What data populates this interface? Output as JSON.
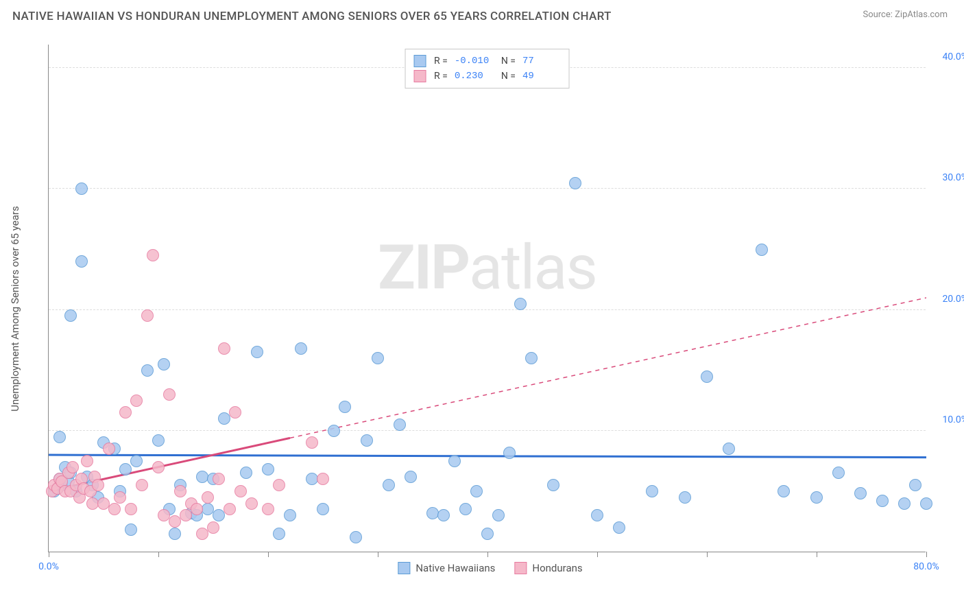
{
  "title": "NATIVE HAWAIIAN VS HONDURAN UNEMPLOYMENT AMONG SENIORS OVER 65 YEARS CORRELATION CHART",
  "source": "Source: ZipAtlas.com",
  "y_axis_label": "Unemployment Among Seniors over 65 years",
  "watermark_bold": "ZIP",
  "watermark_light": "atlas",
  "chart": {
    "type": "scatter",
    "background_color": "#ffffff",
    "grid_color": "#dddddd",
    "axis_color": "#888888",
    "tick_label_color": "#3b82f6",
    "xlim": [
      0,
      80
    ],
    "ylim": [
      0,
      42
    ],
    "x_ticks": [
      0,
      10,
      20,
      30,
      40,
      50,
      60,
      70,
      80
    ],
    "x_tick_labels": {
      "0": "0.0%",
      "80": "80.0%"
    },
    "y_ticks": [
      10,
      20,
      30,
      40
    ],
    "y_tick_labels": {
      "10": "10.0%",
      "20": "20.0%",
      "30": "30.0%",
      "40": "40.0%"
    },
    "marker_radius": 9,
    "marker_fill_opacity": 0.35,
    "legend_top": [
      {
        "swatch_fill": "#a8c9f0",
        "swatch_border": "#5b9bd5",
        "r_label": "R =",
        "r_value": "-0.010",
        "n_label": "N =",
        "n_value": "77"
      },
      {
        "swatch_fill": "#f5b8c9",
        "swatch_border": "#e77ba0",
        "r_label": "R =",
        "r_value": " 0.230",
        "n_label": "N =",
        "n_value": "49"
      }
    ],
    "legend_bottom": [
      {
        "swatch_fill": "#a8c9f0",
        "swatch_border": "#5b9bd5",
        "label": "Native Hawaiians"
      },
      {
        "swatch_fill": "#f5b8c9",
        "swatch_border": "#e77ba0",
        "label": "Hondurans"
      }
    ],
    "series": [
      {
        "name": "Native Hawaiians",
        "color_fill": "#a8c9f0",
        "color_border": "#5b9bd5",
        "trend": {
          "x1": 0,
          "y1": 8.0,
          "x2": 80,
          "y2": 7.8,
          "color": "#2f6fd1",
          "width": 3,
          "dash_from_x": null
        },
        "points": [
          [
            0.5,
            5.0
          ],
          [
            0.8,
            5.2
          ],
          [
            1.0,
            6.0
          ],
          [
            1.0,
            9.5
          ],
          [
            1.2,
            5.5
          ],
          [
            1.5,
            7.0
          ],
          [
            1.8,
            5.8
          ],
          [
            2.0,
            6.5
          ],
          [
            2.0,
            19.5
          ],
          [
            2.5,
            5.0
          ],
          [
            3.0,
            24.0
          ],
          [
            3.0,
            30.0
          ],
          [
            3.5,
            6.2
          ],
          [
            4.0,
            5.5
          ],
          [
            4.5,
            4.5
          ],
          [
            5.0,
            9.0
          ],
          [
            6.0,
            8.5
          ],
          [
            6.5,
            5.0
          ],
          [
            7.0,
            6.8
          ],
          [
            7.5,
            1.8
          ],
          [
            8.0,
            7.5
          ],
          [
            9.0,
            15.0
          ],
          [
            10.0,
            9.2
          ],
          [
            10.5,
            15.5
          ],
          [
            11.0,
            3.5
          ],
          [
            11.5,
            1.5
          ],
          [
            12.0,
            5.5
          ],
          [
            13.0,
            3.2
          ],
          [
            13.5,
            3.0
          ],
          [
            14.0,
            6.2
          ],
          [
            14.5,
            3.5
          ],
          [
            15.0,
            6.0
          ],
          [
            15.5,
            3.0
          ],
          [
            16.0,
            11.0
          ],
          [
            18.0,
            6.5
          ],
          [
            19.0,
            16.5
          ],
          [
            20.0,
            6.8
          ],
          [
            21.0,
            1.5
          ],
          [
            22.0,
            3.0
          ],
          [
            23.0,
            16.8
          ],
          [
            24.0,
            6.0
          ],
          [
            25.0,
            3.5
          ],
          [
            26.0,
            10.0
          ],
          [
            27.0,
            12.0
          ],
          [
            28.0,
            1.2
          ],
          [
            29.0,
            9.2
          ],
          [
            30.0,
            16.0
          ],
          [
            31.0,
            5.5
          ],
          [
            32.0,
            10.5
          ],
          [
            33.0,
            6.2
          ],
          [
            35.0,
            3.2
          ],
          [
            36.0,
            3.0
          ],
          [
            37.0,
            7.5
          ],
          [
            38.0,
            3.5
          ],
          [
            39.0,
            5.0
          ],
          [
            40.0,
            1.5
          ],
          [
            41.0,
            3.0
          ],
          [
            42.0,
            8.2
          ],
          [
            43.0,
            20.5
          ],
          [
            44.0,
            16.0
          ],
          [
            46.0,
            5.5
          ],
          [
            48.0,
            30.5
          ],
          [
            50.0,
            3.0
          ],
          [
            52.0,
            2.0
          ],
          [
            55.0,
            5.0
          ],
          [
            58.0,
            4.5
          ],
          [
            60.0,
            14.5
          ],
          [
            62.0,
            8.5
          ],
          [
            65.0,
            25.0
          ],
          [
            67.0,
            5.0
          ],
          [
            70.0,
            4.5
          ],
          [
            72.0,
            6.5
          ],
          [
            74.0,
            4.8
          ],
          [
            76.0,
            4.2
          ],
          [
            78.0,
            4.0
          ],
          [
            79.0,
            5.5
          ],
          [
            80.0,
            4.0
          ]
        ]
      },
      {
        "name": "Hondurans",
        "color_fill": "#f5b8c9",
        "color_border": "#e77ba0",
        "trend": {
          "x1": 0,
          "y1": 5.0,
          "x2": 80,
          "y2": 21.0,
          "color": "#d94a7a",
          "width": 3,
          "dash_from_x": 22
        },
        "points": [
          [
            0.3,
            5.0
          ],
          [
            0.5,
            5.5
          ],
          [
            0.8,
            5.2
          ],
          [
            1.0,
            6.0
          ],
          [
            1.2,
            5.8
          ],
          [
            1.5,
            5.0
          ],
          [
            1.8,
            6.5
          ],
          [
            2.0,
            5.0
          ],
          [
            2.2,
            7.0
          ],
          [
            2.5,
            5.5
          ],
          [
            2.8,
            4.5
          ],
          [
            3.0,
            6.0
          ],
          [
            3.2,
            5.2
          ],
          [
            3.5,
            7.5
          ],
          [
            3.8,
            5.0
          ],
          [
            4.0,
            4.0
          ],
          [
            4.2,
            6.2
          ],
          [
            4.5,
            5.5
          ],
          [
            5.0,
            4.0
          ],
          [
            5.5,
            8.5
          ],
          [
            6.0,
            3.5
          ],
          [
            6.5,
            4.5
          ],
          [
            7.0,
            11.5
          ],
          [
            7.5,
            3.5
          ],
          [
            8.0,
            12.5
          ],
          [
            8.5,
            5.5
          ],
          [
            9.0,
            19.5
          ],
          [
            9.5,
            24.5
          ],
          [
            10.0,
            7.0
          ],
          [
            10.5,
            3.0
          ],
          [
            11.0,
            13.0
          ],
          [
            11.5,
            2.5
          ],
          [
            12.0,
            5.0
          ],
          [
            12.5,
            3.0
          ],
          [
            13.0,
            4.0
          ],
          [
            13.5,
            3.5
          ],
          [
            14.0,
            1.5
          ],
          [
            14.5,
            4.5
          ],
          [
            15.0,
            2.0
          ],
          [
            15.5,
            6.0
          ],
          [
            16.0,
            16.8
          ],
          [
            16.5,
            3.5
          ],
          [
            17.0,
            11.5
          ],
          [
            17.5,
            5.0
          ],
          [
            18.5,
            4.0
          ],
          [
            20.0,
            3.5
          ],
          [
            21.0,
            5.5
          ],
          [
            24.0,
            9.0
          ],
          [
            25.0,
            6.0
          ]
        ]
      }
    ]
  }
}
